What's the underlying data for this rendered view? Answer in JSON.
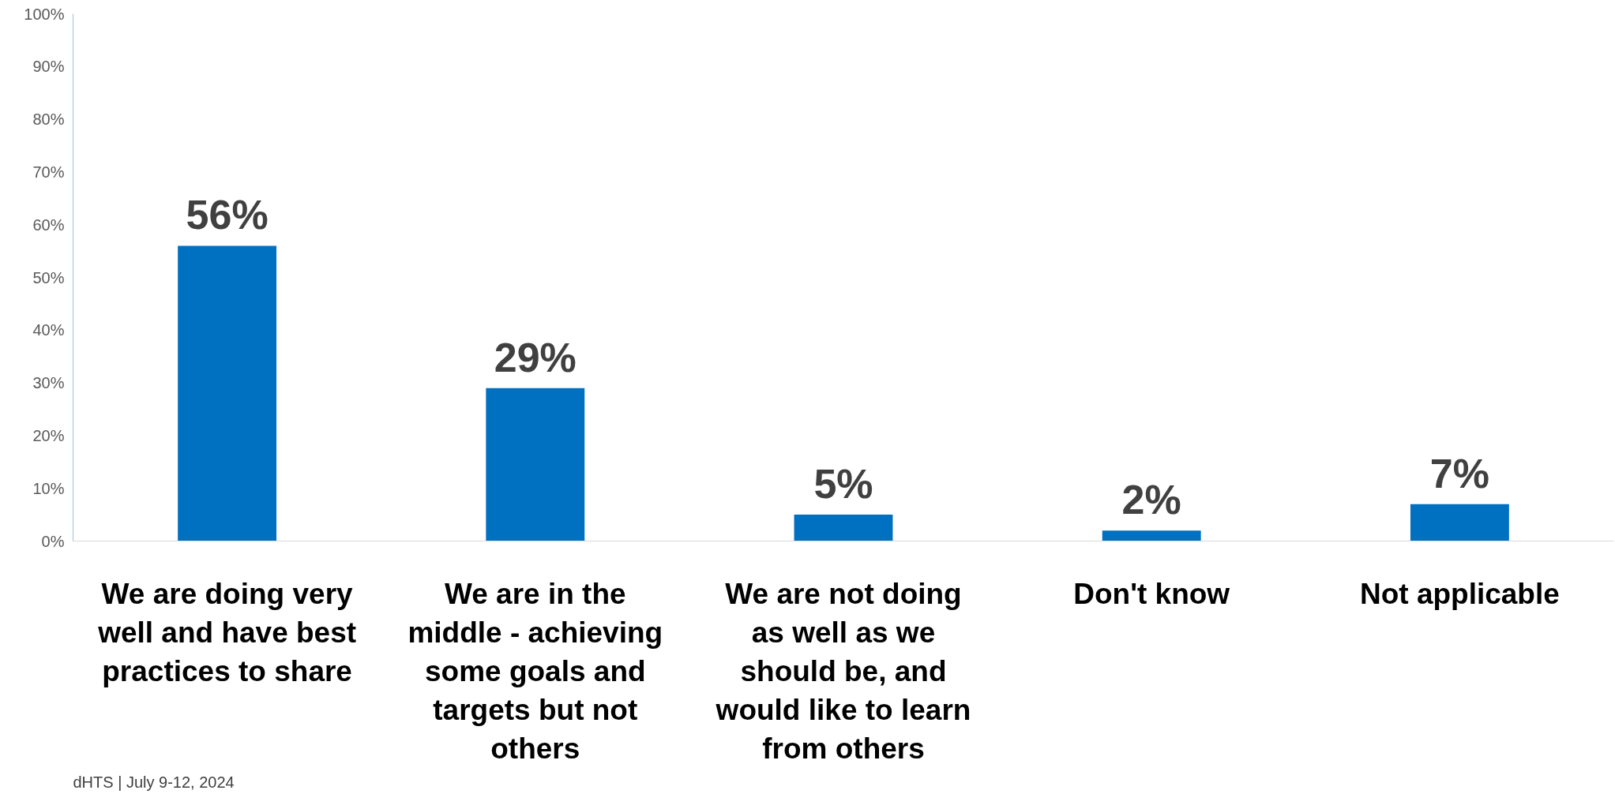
{
  "chart_data": {
    "type": "bar",
    "categories": [
      "We are doing very\nwell and have best\npractices to share",
      "We are in the\nmiddle - achieving\nsome goals and\ntargets but not\nothers",
      "We are not doing\nas well as we\nshould be, and\nwould like to learn\nfrom others",
      "Don't know",
      "Not applicable"
    ],
    "values": [
      56,
      29,
      5,
      2,
      7
    ],
    "value_labels": [
      "56%",
      "29%",
      "5%",
      "2%",
      "7%"
    ],
    "color": "#0070c0",
    "ylim": [
      0,
      100
    ],
    "yticks": [
      {
        "value": 0,
        "label": "0%"
      },
      {
        "value": 10,
        "label": "10%"
      },
      {
        "value": 20,
        "label": "20%"
      },
      {
        "value": 30,
        "label": "30%"
      },
      {
        "value": 40,
        "label": "40%"
      },
      {
        "value": 50,
        "label": "50%"
      },
      {
        "value": 60,
        "label": "60%"
      },
      {
        "value": 70,
        "label": "70%"
      },
      {
        "value": 80,
        "label": "80%"
      },
      {
        "value": 90,
        "label": "90%"
      },
      {
        "value": 100,
        "label": "100%"
      }
    ],
    "grid": false,
    "annotations": [
      "dHTS | July 9-12, 2024"
    ]
  }
}
